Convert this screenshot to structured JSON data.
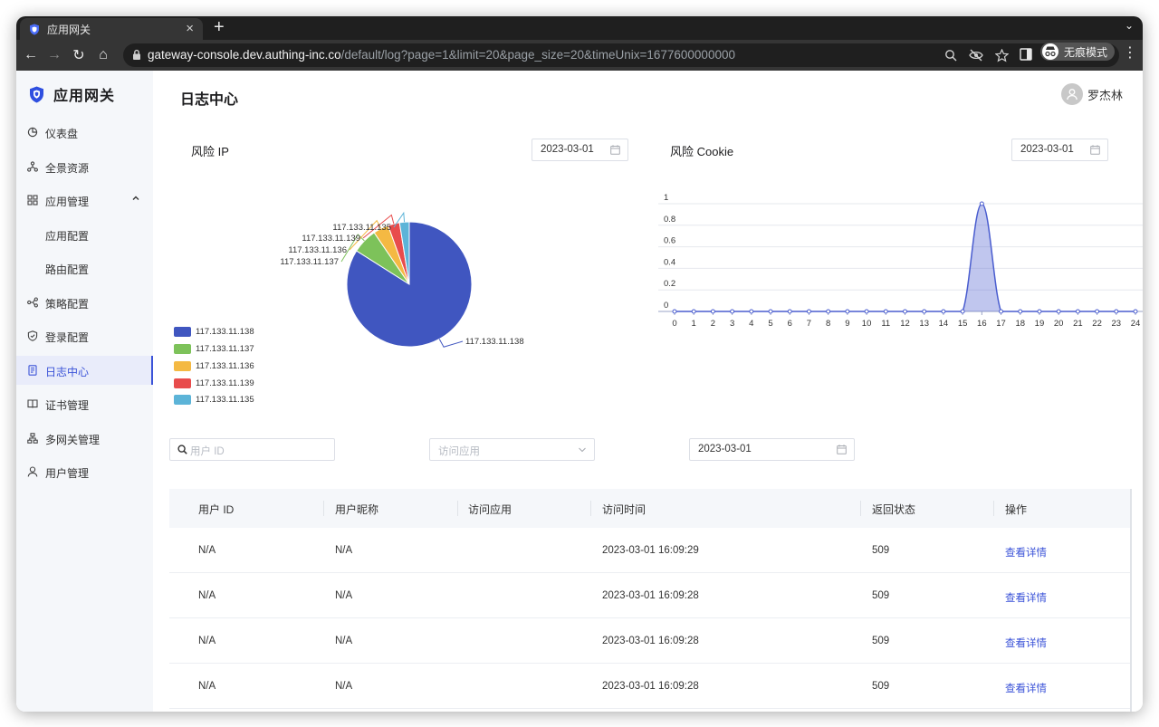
{
  "browser": {
    "tab_title": "应用网关",
    "tab_close": "×",
    "new_tab": "+",
    "tab_menu": "⌄",
    "url_host": "gateway-console.dev.authing-inc.co",
    "url_rest": "/default/log?page=1&limit=20&page_size=20&timeUnix=1677600000000",
    "incognito_label": "无痕模式",
    "menu": "⋮",
    "back": "←",
    "forward": "→",
    "reload": "↻",
    "home": "⌂"
  },
  "sidebar": {
    "brand": "应用网关",
    "items": [
      {
        "label": "仪表盘",
        "icon": "dashboard-icon"
      },
      {
        "label": "全景资源",
        "icon": "resources-icon"
      },
      {
        "label": "应用管理",
        "icon": "app-manage-icon"
      },
      {
        "label": "应用配置",
        "icon": ""
      },
      {
        "label": "路由配置",
        "icon": ""
      },
      {
        "label": "策略配置",
        "icon": "policy-icon"
      },
      {
        "label": "登录配置",
        "icon": "login-icon"
      },
      {
        "label": "日志中心",
        "icon": "log-icon"
      },
      {
        "label": "证书管理",
        "icon": "cert-icon"
      },
      {
        "label": "多网关管理",
        "icon": "multi-gateway-icon"
      },
      {
        "label": "用户管理",
        "icon": "user-icon"
      }
    ],
    "active": "日志中心"
  },
  "header": {
    "title": "日志中心",
    "user_name": "罗杰林"
  },
  "risk_ip": {
    "title": "风险 IP",
    "date": "2023-03-01"
  },
  "risk_cookie": {
    "title": "风险 Cookie",
    "date": "2023-03-01"
  },
  "chart_data": [
    {
      "type": "pie",
      "title": "",
      "legend_position": "bottom-left",
      "categories": [
        "117.133.11.138",
        "117.133.11.137",
        "117.133.11.136",
        "117.133.11.139",
        "117.133.11.135"
      ],
      "values": [
        84,
        6.5,
        4,
        3,
        2.5
      ],
      "colors": [
        "#4056c0",
        "#7dc25a",
        "#f4b943",
        "#e84c4c",
        "#5cb4d8"
      ]
    },
    {
      "type": "area",
      "title": "",
      "x": [
        0,
        1,
        2,
        3,
        4,
        5,
        6,
        7,
        8,
        9,
        10,
        11,
        12,
        13,
        14,
        15,
        16,
        17,
        18,
        19,
        20,
        21,
        22,
        23,
        24
      ],
      "y": [
        0,
        0,
        0,
        0,
        0,
        0,
        0,
        0,
        0,
        0,
        0,
        0,
        0,
        0,
        0,
        0,
        1,
        0,
        0,
        0,
        0,
        0,
        0,
        0,
        0
      ],
      "ylim": [
        0,
        1
      ],
      "yticks": [
        "0",
        "0.2",
        "0.4",
        "0.6",
        "0.8",
        "1"
      ],
      "grid": true,
      "color": "#4a5dcf"
    }
  ],
  "filters": {
    "user_id_placeholder": "用户 ID",
    "app_placeholder": "访问应用",
    "date": "2023-03-01"
  },
  "table": {
    "columns": [
      "用户 ID",
      "用户昵称",
      "访问应用",
      "访问时间",
      "返回状态",
      "操作"
    ],
    "rows": [
      {
        "user_id": "N/A",
        "nickname": "N/A",
        "app": "",
        "time": "2023-03-01 16:09:29",
        "status": "509",
        "action": "查看详情"
      },
      {
        "user_id": "N/A",
        "nickname": "N/A",
        "app": "",
        "time": "2023-03-01 16:09:28",
        "status": "509",
        "action": "查看详情"
      },
      {
        "user_id": "N/A",
        "nickname": "N/A",
        "app": "",
        "time": "2023-03-01 16:09:28",
        "status": "509",
        "action": "查看详情"
      },
      {
        "user_id": "N/A",
        "nickname": "N/A",
        "app": "",
        "time": "2023-03-01 16:09:28",
        "status": "509",
        "action": "查看详情"
      }
    ]
  }
}
